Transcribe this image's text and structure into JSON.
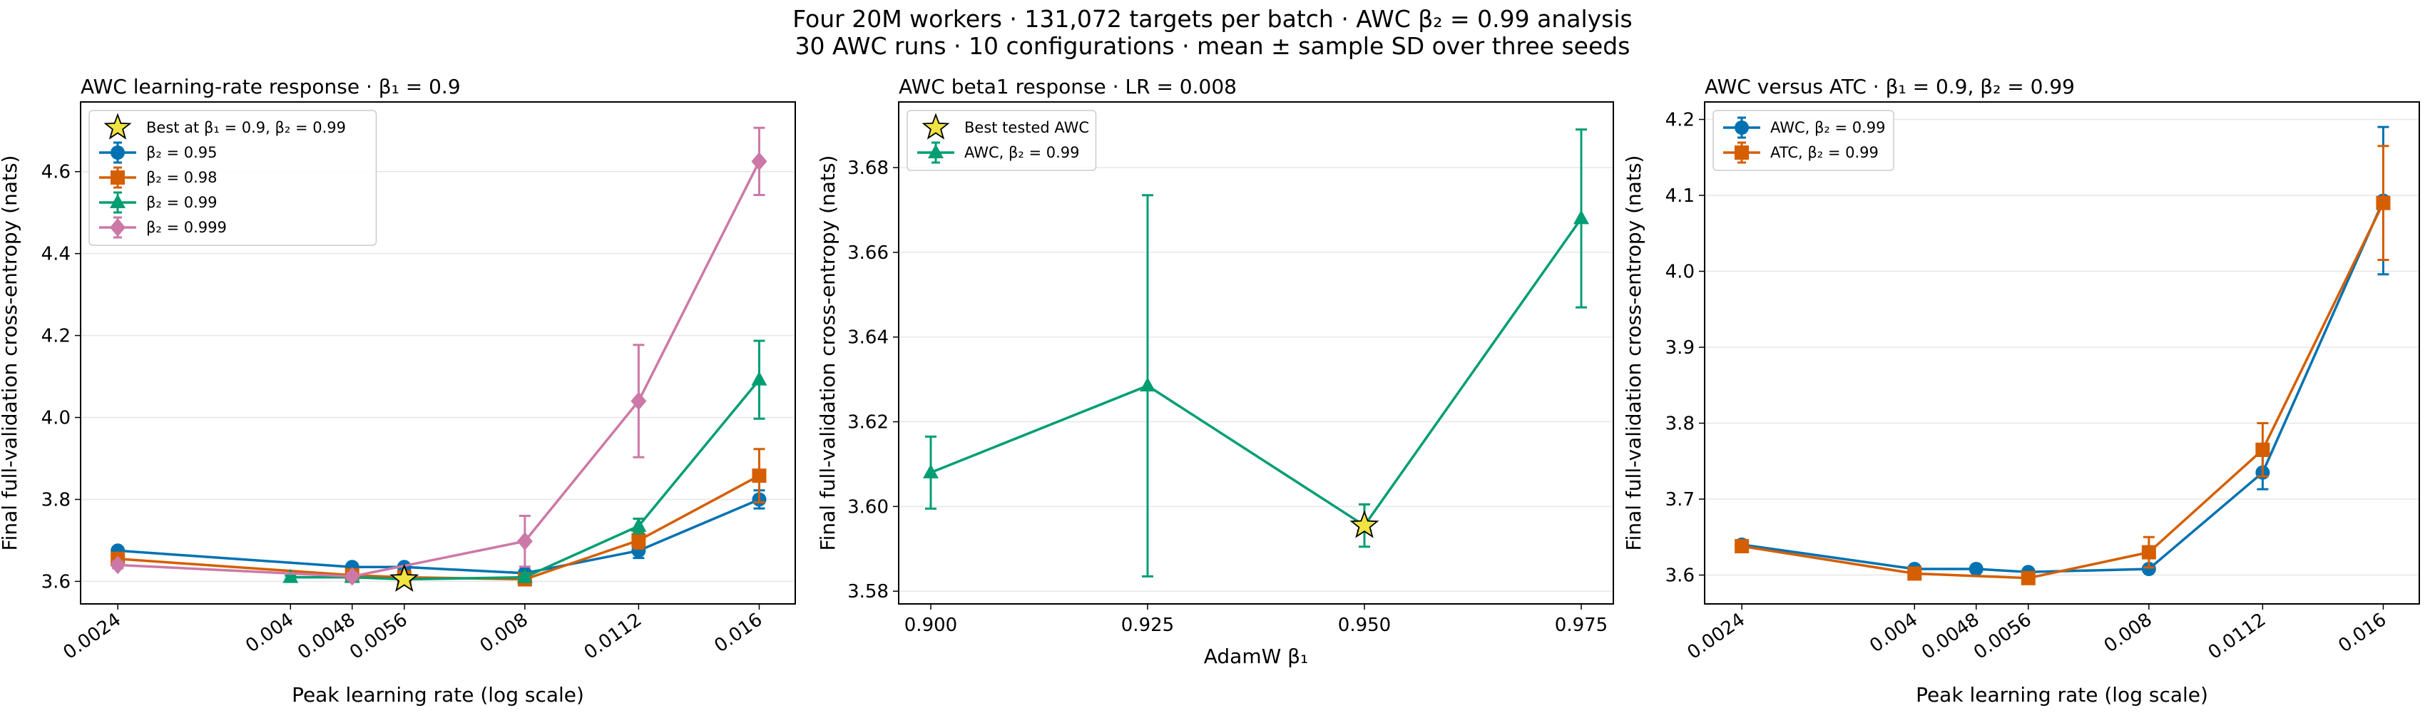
{
  "figure": {
    "title_line1": "Four 20M workers · 131,072 targets per batch · AWC β₂ = 0.99 analysis",
    "title_line2": "30 AWC runs · 10 configurations · mean ± sample SD over three seeds"
  },
  "colors": {
    "blue": "#0072b2",
    "orange": "#d55e00",
    "green": "#009e73",
    "pink": "#cc79a7",
    "star": "#f0e442"
  },
  "chart_data": [
    {
      "type": "line",
      "title": "AWC learning-rate response · β₁ = 0.9",
      "xlabel": "Peak learning rate (log scale)",
      "ylabel": "Final full-validation cross-entropy (nats)",
      "xscale": "log",
      "xlim": [
        0.00215,
        0.0178
      ],
      "ylim": [
        3.545,
        4.77
      ],
      "xticks": [
        0.0024,
        0.004,
        0.0048,
        0.0056,
        0.008,
        0.0112,
        0.016
      ],
      "xtick_labels": [
        "0.0024",
        "0.004",
        "0.0048",
        "0.0056",
        "0.008",
        "0.0112",
        "0.016"
      ],
      "yticks": [
        3.6,
        3.8,
        4.0,
        4.2,
        4.4,
        4.6
      ],
      "ytick_labels": [
        "3.6",
        "3.8",
        "4.0",
        "4.2",
        "4.4",
        "4.6"
      ],
      "grid": "horizontal",
      "legend_position": "upper left",
      "star": {
        "label": "Best at β₁ = 0.9, β₂ = 0.99",
        "x": 0.0056,
        "y": 3.605
      },
      "series": [
        {
          "name": "β₂ = 0.95",
          "color": "blue",
          "marker": "circle",
          "x": [
            0.0024,
            0.0048,
            0.0056,
            0.008,
            0.0112,
            0.016
          ],
          "y": [
            3.675,
            3.635,
            3.635,
            3.62,
            3.675,
            3.8
          ],
          "err": [
            0.008,
            0.008,
            0.006,
            0.006,
            0.018,
            0.022
          ]
        },
        {
          "name": "β₂ = 0.98",
          "color": "orange",
          "marker": "square",
          "x": [
            0.0024,
            0.0048,
            0.0056,
            0.008,
            0.0112,
            0.016
          ],
          "y": [
            3.655,
            3.615,
            3.61,
            3.605,
            3.7,
            3.858
          ],
          "err": [
            0.01,
            0.006,
            0.006,
            0.006,
            0.02,
            0.065
          ]
        },
        {
          "name": "β₂ = 0.99",
          "color": "green",
          "marker": "triangle",
          "x": [
            0.004,
            0.0048,
            0.0056,
            0.008,
            0.0112,
            0.016
          ],
          "y": [
            3.61,
            3.61,
            3.605,
            3.61,
            3.735,
            4.092
          ],
          "err": [
            0.004,
            0.004,
            0.004,
            0.008,
            0.018,
            0.095
          ]
        },
        {
          "name": "β₂ = 0.999",
          "color": "pink",
          "marker": "diamond",
          "x": [
            0.0024,
            0.0048,
            0.008,
            0.0112,
            0.016
          ],
          "y": [
            3.64,
            3.612,
            3.698,
            4.04,
            4.625
          ],
          "err": [
            0.008,
            0.008,
            0.062,
            0.137,
            0.082
          ]
        }
      ]
    },
    {
      "type": "line",
      "title": "AWC beta1 response · LR = 0.008",
      "xlabel": "AdamW β₁",
      "ylabel": "Final full-validation cross-entropy (nats)",
      "xscale": "linear",
      "xlim": [
        0.8963,
        0.9787
      ],
      "ylim": [
        3.577,
        3.6955
      ],
      "xticks": [
        0.9,
        0.925,
        0.95,
        0.975
      ],
      "xtick_labels": [
        "0.900",
        "0.925",
        "0.950",
        "0.975"
      ],
      "yticks": [
        3.58,
        3.6,
        3.62,
        3.64,
        3.66,
        3.68
      ],
      "ytick_labels": [
        "3.58",
        "3.60",
        "3.62",
        "3.64",
        "3.66",
        "3.68"
      ],
      "grid": "horizontal",
      "legend_position": "upper left",
      "star": {
        "label": "Best tested AWC",
        "x": 0.95,
        "y": 3.5955
      },
      "series": [
        {
          "name": "AWC, β₂ = 0.99",
          "color": "green",
          "marker": "triangle",
          "x": [
            0.9,
            0.925,
            0.95,
            0.975
          ],
          "y": [
            3.608,
            3.6285,
            3.5955,
            3.668
          ],
          "err": [
            0.0085,
            0.045,
            0.005,
            0.021
          ]
        }
      ]
    },
    {
      "type": "line",
      "title": "AWC versus ATC · β₁ = 0.9, β₂ = 0.99",
      "xlabel": "Peak learning rate (log scale)",
      "ylabel": "Final full-validation cross-entropy (nats)",
      "xscale": "log",
      "xlim": [
        0.00215,
        0.0178
      ],
      "ylim": [
        3.562,
        4.223
      ],
      "xticks": [
        0.0024,
        0.004,
        0.0048,
        0.0056,
        0.008,
        0.0112,
        0.016
      ],
      "xtick_labels": [
        "0.0024",
        "0.004",
        "0.0048",
        "0.0056",
        "0.008",
        "0.0112",
        "0.016"
      ],
      "yticks": [
        3.6,
        3.7,
        3.8,
        3.9,
        4.0,
        4.1,
        4.2
      ],
      "ytick_labels": [
        "3.6",
        "3.7",
        "3.8",
        "3.9",
        "4.0",
        "4.1",
        "4.2"
      ],
      "grid": "horizontal",
      "legend_position": "upper left",
      "series": [
        {
          "name": "AWC, β₂ = 0.99",
          "color": "blue",
          "marker": "circle",
          "x": [
            0.0024,
            0.004,
            0.0048,
            0.0056,
            0.008,
            0.0112,
            0.016
          ],
          "y": [
            3.64,
            3.608,
            3.608,
            3.604,
            3.608,
            3.735,
            4.093
          ],
          "err": [
            0.004,
            0.004,
            0.004,
            0.004,
            0.004,
            0.022,
            0.097
          ]
        },
        {
          "name": "ATC, β₂ = 0.99",
          "color": "orange",
          "marker": "square",
          "x": [
            0.0024,
            0.004,
            0.0056,
            0.008,
            0.0112,
            0.016
          ],
          "y": [
            3.638,
            3.602,
            3.596,
            3.63,
            3.765,
            4.09
          ],
          "err": [
            0.004,
            0.004,
            0.006,
            0.02,
            0.035,
            0.075
          ]
        }
      ]
    }
  ]
}
